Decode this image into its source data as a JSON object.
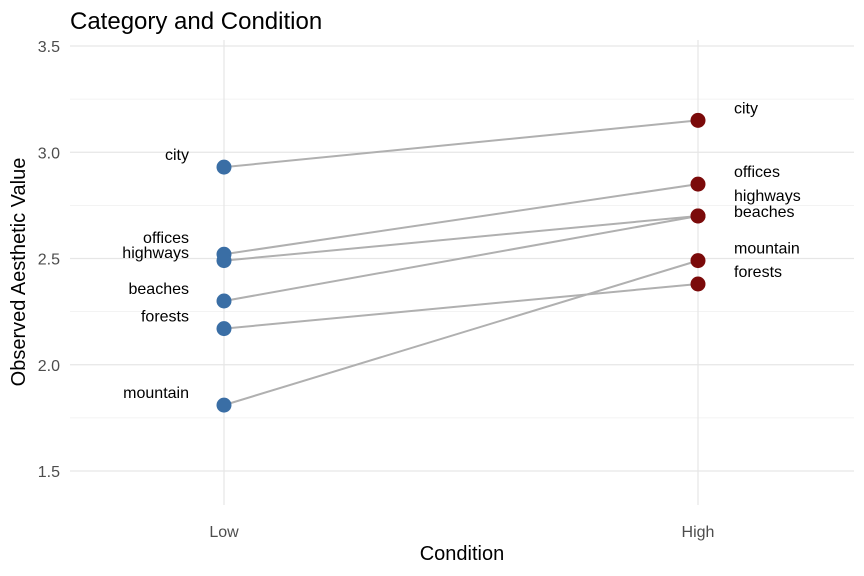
{
  "chart_data": {
    "type": "scatter",
    "title": "Category and Condition",
    "xlabel": "Condition",
    "ylabel": "Observed Aesthetic Value",
    "categories": [
      "Low",
      "High"
    ],
    "ylim": [
      1.3,
      3.5
    ],
    "yticks": [
      "1.5",
      "2.0",
      "2.5",
      "3.0",
      "3.5"
    ],
    "grid": true,
    "series": [
      {
        "name": "city",
        "values": [
          2.93,
          3.15
        ]
      },
      {
        "name": "offices",
        "values": [
          2.52,
          2.85
        ]
      },
      {
        "name": "highways",
        "values": [
          2.49,
          2.7
        ]
      },
      {
        "name": "beaches",
        "values": [
          2.3,
          2.7
        ]
      },
      {
        "name": "forests",
        "values": [
          2.17,
          2.38
        ]
      },
      {
        "name": "mountain",
        "values": [
          1.81,
          2.49
        ]
      }
    ],
    "colors": {
      "Low": "#3a6ea5",
      "High": "#7b0a0a",
      "line": "#b0b0b0"
    }
  }
}
